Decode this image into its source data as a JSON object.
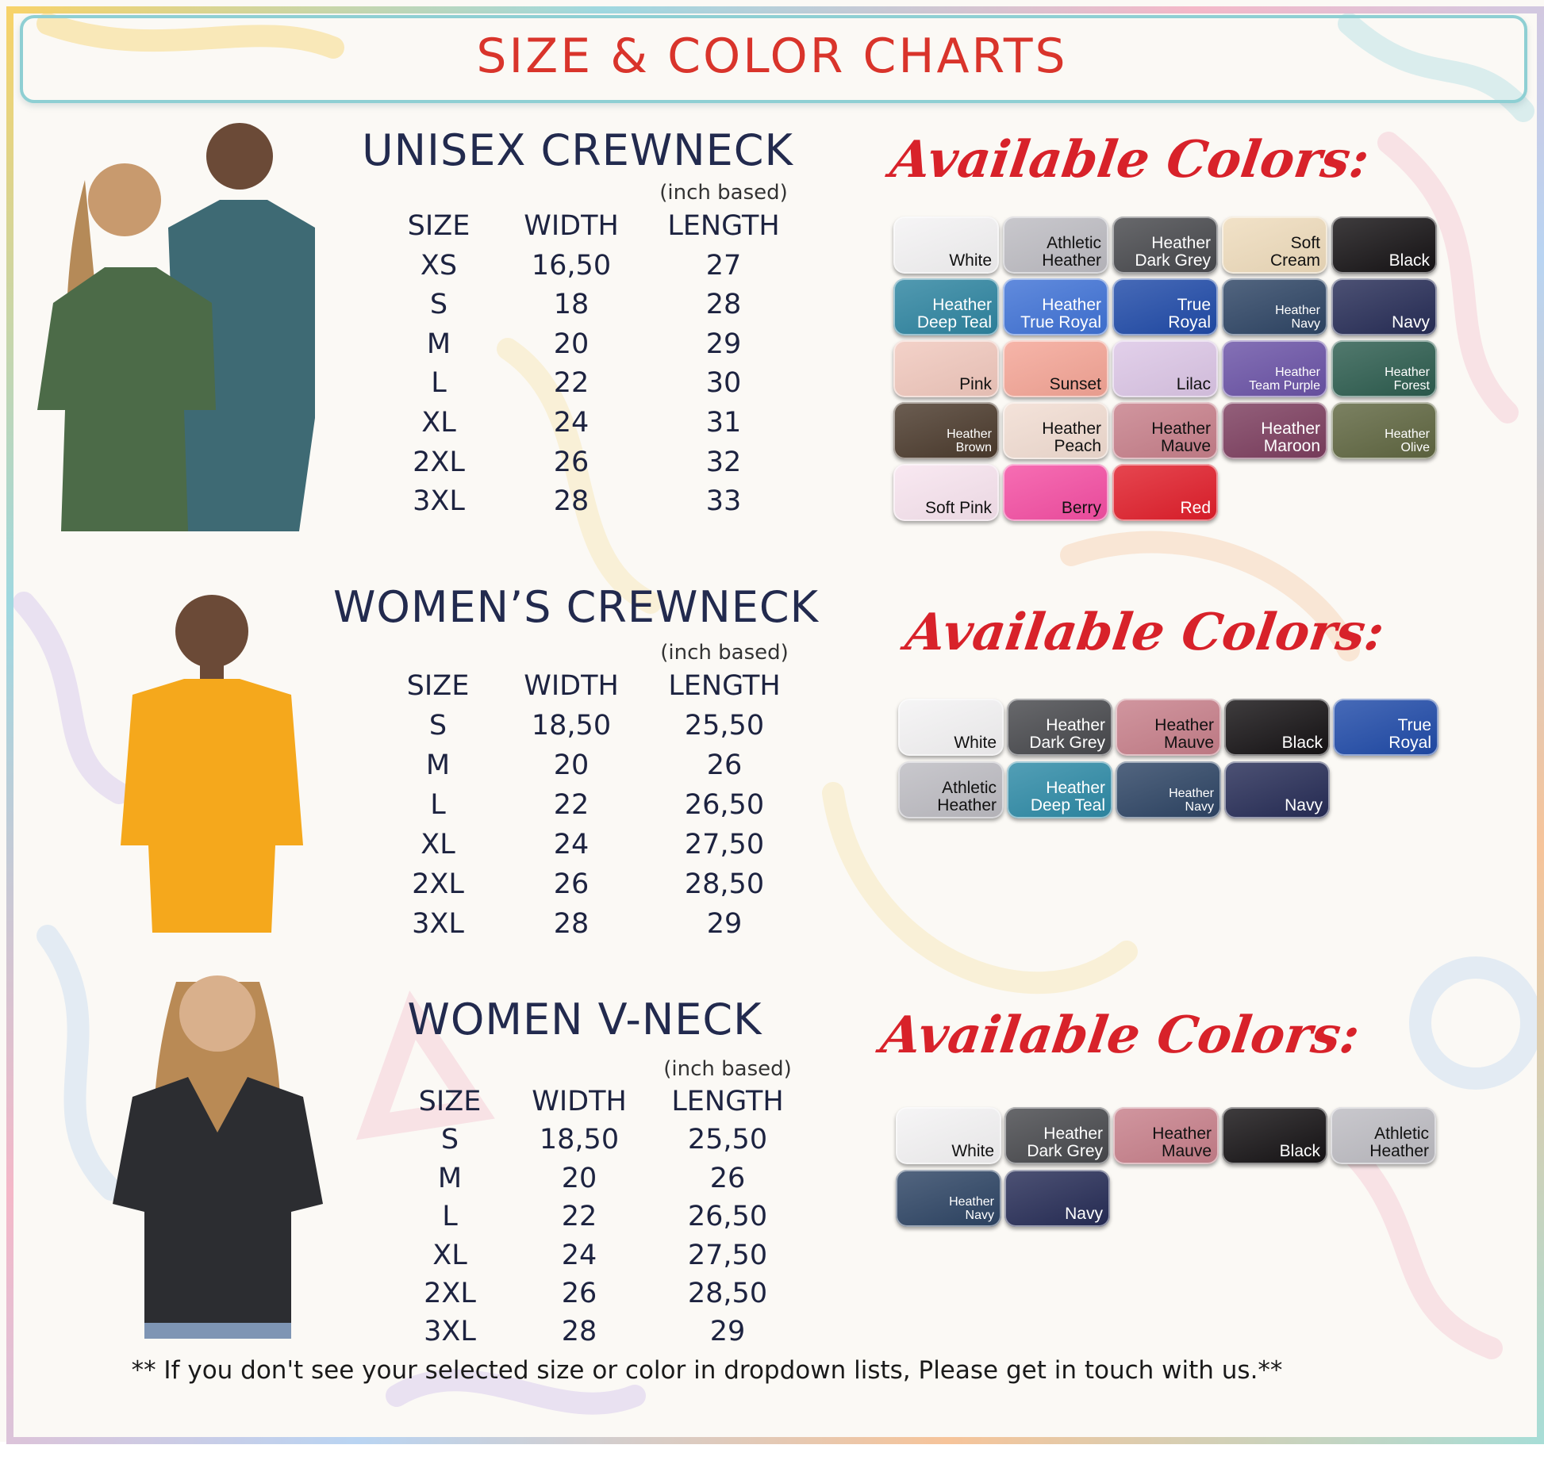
{
  "header": {
    "title": "SIZE & COLOR CHARTS"
  },
  "colors": {
    "title": "#d9342b",
    "heading": "#222a4e",
    "script": "#d8222a"
  },
  "sections": [
    {
      "title": "UNISEX CREWNECK",
      "unit_note": "(inch based)",
      "columns": [
        "SIZE",
        "WIDTH",
        "LENGTH"
      ],
      "rows": [
        [
          "XS",
          "16,50",
          "27"
        ],
        [
          "S",
          "18",
          "28"
        ],
        [
          "M",
          "20",
          "29"
        ],
        [
          "L",
          "22",
          "30"
        ],
        [
          "XL",
          "24",
          "31"
        ],
        [
          "2XL",
          "26",
          "32"
        ],
        [
          "3XL",
          "28",
          "33"
        ]
      ],
      "colors_heading": "Available Colors:",
      "swatches": [
        {
          "name": [
            "White"
          ],
          "bg": "#f4f3f4",
          "fg": "#111"
        },
        {
          "name": [
            "Athletic",
            "Heather"
          ],
          "bg": "#bdbcc2",
          "fg": "#111"
        },
        {
          "name": [
            "Heather",
            "Dark Grey"
          ],
          "bg": "#47484c",
          "fg": "#fff"
        },
        {
          "name": [
            "Soft",
            "Cream"
          ],
          "bg": "#efdcbc",
          "fg": "#111"
        },
        {
          "name": [
            "Black"
          ],
          "bg": "#151214",
          "fg": "#fff"
        },
        {
          "name": [
            "Heather",
            "Deep Teal"
          ],
          "bg": "#2d84a0",
          "fg": "#fff"
        },
        {
          "name": [
            "Heather",
            "True Royal"
          ],
          "bg": "#3f72d6",
          "fg": "#fff"
        },
        {
          "name": [
            "True",
            "Royal"
          ],
          "bg": "#1f4aa8",
          "fg": "#fff"
        },
        {
          "name": [
            "Heather",
            "Navy"
          ],
          "bg": "#2d4464",
          "fg": "#fff",
          "small": true
        },
        {
          "name": [
            "Navy"
          ],
          "bg": "#262c56",
          "fg": "#fff"
        },
        {
          "name": [
            "Pink"
          ],
          "bg": "#f1c8bd",
          "fg": "#111"
        },
        {
          "name": [
            "Sunset"
          ],
          "bg": "#f5a596",
          "fg": "#111"
        },
        {
          "name": [
            "Lilac"
          ],
          "bg": "#dcc6e6",
          "fg": "#111"
        },
        {
          "name": [
            "Heather",
            "Team Purple"
          ],
          "bg": "#6a52a6",
          "fg": "#fff",
          "small": true
        },
        {
          "name": [
            "Heather",
            "Forest"
          ],
          "bg": "#2c5c4e",
          "fg": "#fff",
          "small": true
        },
        {
          "name": [
            "Heather",
            "Brown"
          ],
          "bg": "#4b3a2c",
          "fg": "#fff",
          "small": true
        },
        {
          "name": [
            "Heather",
            "Peach"
          ],
          "bg": "#f2ddd2",
          "fg": "#111"
        },
        {
          "name": [
            "Heather",
            "Mauve"
          ],
          "bg": "#c77f8a",
          "fg": "#111"
        },
        {
          "name": [
            "Heather",
            "Maroon"
          ],
          "bg": "#7c3d5e",
          "fg": "#fff"
        },
        {
          "name": [
            "Heather",
            "Olive"
          ],
          "bg": "#5f6640",
          "fg": "#fff",
          "small": true
        },
        {
          "name": [
            "Soft Pink"
          ],
          "bg": "#f8e4ef",
          "fg": "#111"
        },
        {
          "name": [
            "Berry"
          ],
          "bg": "#f54ea3",
          "fg": "#111"
        },
        {
          "name": [
            "Red"
          ],
          "bg": "#e11e2a",
          "fg": "#fff"
        }
      ]
    },
    {
      "title": "WOMEN’S CREWNECK",
      "unit_note": "(inch based)",
      "columns": [
        "SIZE",
        "WIDTH",
        "LENGTH"
      ],
      "rows": [
        [
          "S",
          "18,50",
          "25,50"
        ],
        [
          "M",
          "20",
          "26"
        ],
        [
          "L",
          "22",
          "26,50"
        ],
        [
          "XL",
          "24",
          "27,50"
        ],
        [
          "2XL",
          "26",
          "28,50"
        ],
        [
          "3XL",
          "28",
          "29"
        ]
      ],
      "colors_heading": "Available Colors:",
      "swatches": [
        {
          "name": [
            "White"
          ],
          "bg": "#f4f3f4",
          "fg": "#111"
        },
        {
          "name": [
            "Heather",
            "Dark Grey"
          ],
          "bg": "#47484c",
          "fg": "#fff"
        },
        {
          "name": [
            "Heather",
            "Mauve"
          ],
          "bg": "#c77f8a",
          "fg": "#111"
        },
        {
          "name": [
            "Black"
          ],
          "bg": "#151214",
          "fg": "#fff"
        },
        {
          "name": [
            "True",
            "Royal"
          ],
          "bg": "#1f4aa8",
          "fg": "#fff"
        },
        {
          "name": [
            "Athletic",
            "Heather"
          ],
          "bg": "#bdbcc2",
          "fg": "#111"
        },
        {
          "name": [
            "Heather",
            "Deep Teal"
          ],
          "bg": "#2d8aa6",
          "fg": "#fff"
        },
        {
          "name": [
            "Heather",
            "Navy"
          ],
          "bg": "#2d4464",
          "fg": "#fff",
          "small": true
        },
        {
          "name": [
            "Navy"
          ],
          "bg": "#262c56",
          "fg": "#fff"
        }
      ]
    },
    {
      "title": "WOMEN V-NECK",
      "unit_note": "(inch based)",
      "columns": [
        "SIZE",
        "WIDTH",
        "LENGTH"
      ],
      "rows": [
        [
          "S",
          "18,50",
          "25,50"
        ],
        [
          "M",
          "20",
          "26"
        ],
        [
          "L",
          "22",
          "26,50"
        ],
        [
          "XL",
          "24",
          "27,50"
        ],
        [
          "2XL",
          "26",
          "28,50"
        ],
        [
          "3XL",
          "28",
          "29"
        ]
      ],
      "colors_heading": "Available Colors:",
      "swatches": [
        {
          "name": [
            "White"
          ],
          "bg": "#f4f3f4",
          "fg": "#111"
        },
        {
          "name": [
            "Heather",
            "Dark Grey"
          ],
          "bg": "#47484c",
          "fg": "#fff"
        },
        {
          "name": [
            "Heather",
            "Mauve"
          ],
          "bg": "#c77f8a",
          "fg": "#111"
        },
        {
          "name": [
            "Black"
          ],
          "bg": "#151214",
          "fg": "#fff"
        },
        {
          "name": [
            "Athletic",
            "Heather"
          ],
          "bg": "#bdbcc2",
          "fg": "#111"
        },
        {
          "name": [
            "Heather",
            "Navy"
          ],
          "bg": "#2d4464",
          "fg": "#fff",
          "small": true
        },
        {
          "name": [
            "Navy"
          ],
          "bg": "#262c56",
          "fg": "#fff"
        }
      ]
    }
  ],
  "footer": {
    "note": "** If you don't see your selected size or color in dropdown lists, Please get in touch with us.**"
  }
}
